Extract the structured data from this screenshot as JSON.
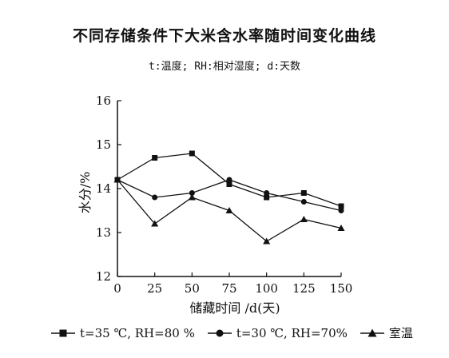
{
  "chart_data": {
    "type": "line",
    "title": "不同存储条件下大米含水率随时间变化曲线",
    "subtitle": "t:温度; RH:相对湿度; d:天数",
    "xlabel": "储藏时间 /d(天)",
    "ylabel": "水分/%",
    "x": [
      0,
      25,
      50,
      75,
      100,
      125,
      150
    ],
    "xlim": [
      0,
      150
    ],
    "ylim": [
      12,
      16
    ],
    "yticks": [
      12,
      13,
      14,
      15,
      16
    ],
    "grid": false,
    "legend_position": "bottom",
    "series": [
      {
        "name": "t=35 ℃, RH=80 %",
        "marker": "square",
        "values": [
          14.2,
          14.7,
          14.8,
          14.1,
          13.8,
          13.9,
          13.6
        ]
      },
      {
        "name": "t=30 ℃, RH=70%",
        "marker": "circle",
        "values": [
          14.2,
          13.8,
          13.9,
          14.2,
          13.9,
          13.7,
          13.5
        ]
      },
      {
        "name": "室温",
        "marker": "triangle",
        "values": [
          14.2,
          13.2,
          13.8,
          13.5,
          12.8,
          13.3,
          13.1
        ]
      }
    ]
  }
}
